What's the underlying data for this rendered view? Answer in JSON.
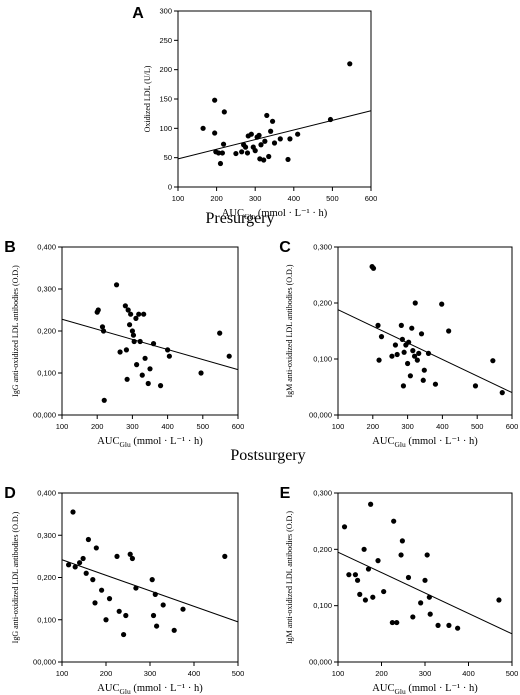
{
  "sections": {
    "presurgery": "Presurgery",
    "postsurgery": "Postsurgery"
  },
  "chart_data": [
    {
      "panel": "A",
      "type": "scatter",
      "xlabel_main": "AUC",
      "xlabel_sub": "Glu",
      "xlabel_tail": " (mmol · L⁻¹ · h)",
      "ylabel": "Oxidized LDL (U/L)",
      "xlim": [
        100,
        600
      ],
      "ylim": [
        0,
        300
      ],
      "xticks": [
        "100",
        "200",
        "300",
        "400",
        "500",
        "600"
      ],
      "yticks": [
        "0",
        "50",
        "100",
        "150",
        "200",
        "250",
        "300"
      ],
      "trend": {
        "x": [
          100,
          600
        ],
        "y": [
          48,
          130
        ]
      },
      "points": [
        {
          "x": 165,
          "y": 100
        },
        {
          "x": 195,
          "y": 148
        },
        {
          "x": 195,
          "y": 92
        },
        {
          "x": 198,
          "y": 60
        },
        {
          "x": 205,
          "y": 58
        },
        {
          "x": 210,
          "y": 40
        },
        {
          "x": 215,
          "y": 58
        },
        {
          "x": 218,
          "y": 73
        },
        {
          "x": 220,
          "y": 128
        },
        {
          "x": 250,
          "y": 57
        },
        {
          "x": 265,
          "y": 60
        },
        {
          "x": 270,
          "y": 72
        },
        {
          "x": 275,
          "y": 68
        },
        {
          "x": 280,
          "y": 58
        },
        {
          "x": 282,
          "y": 87
        },
        {
          "x": 290,
          "y": 90
        },
        {
          "x": 295,
          "y": 68
        },
        {
          "x": 300,
          "y": 62
        },
        {
          "x": 305,
          "y": 85
        },
        {
          "x": 310,
          "y": 88
        },
        {
          "x": 312,
          "y": 48
        },
        {
          "x": 315,
          "y": 72
        },
        {
          "x": 322,
          "y": 46
        },
        {
          "x": 325,
          "y": 78
        },
        {
          "x": 330,
          "y": 122
        },
        {
          "x": 335,
          "y": 52
        },
        {
          "x": 340,
          "y": 95
        },
        {
          "x": 345,
          "y": 112
        },
        {
          "x": 350,
          "y": 75
        },
        {
          "x": 365,
          "y": 82
        },
        {
          "x": 385,
          "y": 47
        },
        {
          "x": 390,
          "y": 82
        },
        {
          "x": 410,
          "y": 90
        },
        {
          "x": 495,
          "y": 115
        },
        {
          "x": 545,
          "y": 210
        }
      ]
    },
    {
      "panel": "B",
      "type": "scatter",
      "xlabel_main": "AUC",
      "xlabel_sub": "Glu",
      "xlabel_tail": " (mmol · L⁻¹ · h)",
      "ylabel": "IgG anti-oxidized LDL antibodies (O.D.)",
      "xlim": [
        100,
        600
      ],
      "ylim": [
        0,
        0.4
      ],
      "xticks": [
        "100",
        "200",
        "300",
        "400",
        "500",
        "600"
      ],
      "yticks": [
        "00,000",
        "0,100",
        "0,200",
        "0,300",
        "0,400"
      ],
      "trend": {
        "x": [
          100,
          600
        ],
        "y": [
          0.228,
          0.108
        ]
      },
      "points": [
        {
          "x": 200,
          "y": 0.245
        },
        {
          "x": 203,
          "y": 0.25
        },
        {
          "x": 215,
          "y": 0.21
        },
        {
          "x": 218,
          "y": 0.2
        },
        {
          "x": 220,
          "y": 0.035
        },
        {
          "x": 255,
          "y": 0.31
        },
        {
          "x": 265,
          "y": 0.15
        },
        {
          "x": 280,
          "y": 0.26
        },
        {
          "x": 283,
          "y": 0.155
        },
        {
          "x": 285,
          "y": 0.085
        },
        {
          "x": 288,
          "y": 0.25
        },
        {
          "x": 292,
          "y": 0.215
        },
        {
          "x": 295,
          "y": 0.24
        },
        {
          "x": 300,
          "y": 0.2
        },
        {
          "x": 303,
          "y": 0.19
        },
        {
          "x": 305,
          "y": 0.175
        },
        {
          "x": 310,
          "y": 0.23
        },
        {
          "x": 312,
          "y": 0.12
        },
        {
          "x": 318,
          "y": 0.24
        },
        {
          "x": 322,
          "y": 0.175
        },
        {
          "x": 328,
          "y": 0.095
        },
        {
          "x": 332,
          "y": 0.24
        },
        {
          "x": 336,
          "y": 0.135
        },
        {
          "x": 345,
          "y": 0.075
        },
        {
          "x": 350,
          "y": 0.11
        },
        {
          "x": 360,
          "y": 0.17
        },
        {
          "x": 380,
          "y": 0.07
        },
        {
          "x": 400,
          "y": 0.155
        },
        {
          "x": 405,
          "y": 0.14
        },
        {
          "x": 495,
          "y": 0.1
        },
        {
          "x": 548,
          "y": 0.195
        },
        {
          "x": 575,
          "y": 0.14
        }
      ]
    },
    {
      "panel": "C",
      "type": "scatter",
      "xlabel_main": "AUC",
      "xlabel_sub": "Glu",
      "xlabel_tail": " (mmol · L⁻¹ · h)",
      "ylabel": "IgM anti-oxidized LDL antibodies (O.D.)",
      "xlim": [
        100,
        600
      ],
      "ylim": [
        0,
        0.3
      ],
      "xticks": [
        "100",
        "200",
        "300",
        "400",
        "500",
        "600"
      ],
      "yticks": [
        "00,000",
        "0,100",
        "0,200",
        "0,300"
      ],
      "trend": {
        "x": [
          100,
          600
        ],
        "y": [
          0.188,
          0.04
        ]
      },
      "points": [
        {
          "x": 198,
          "y": 0.265
        },
        {
          "x": 202,
          "y": 0.262
        },
        {
          "x": 215,
          "y": 0.16
        },
        {
          "x": 218,
          "y": 0.098
        },
        {
          "x": 225,
          "y": 0.14
        },
        {
          "x": 255,
          "y": 0.105
        },
        {
          "x": 265,
          "y": 0.125
        },
        {
          "x": 270,
          "y": 0.108
        },
        {
          "x": 282,
          "y": 0.16
        },
        {
          "x": 285,
          "y": 0.135
        },
        {
          "x": 288,
          "y": 0.052
        },
        {
          "x": 290,
          "y": 0.112
        },
        {
          "x": 295,
          "y": 0.125
        },
        {
          "x": 300,
          "y": 0.092
        },
        {
          "x": 303,
          "y": 0.13
        },
        {
          "x": 308,
          "y": 0.07
        },
        {
          "x": 312,
          "y": 0.155
        },
        {
          "x": 315,
          "y": 0.115
        },
        {
          "x": 320,
          "y": 0.105
        },
        {
          "x": 322,
          "y": 0.2
        },
        {
          "x": 328,
          "y": 0.098
        },
        {
          "x": 332,
          "y": 0.11
        },
        {
          "x": 340,
          "y": 0.145
        },
        {
          "x": 345,
          "y": 0.062
        },
        {
          "x": 348,
          "y": 0.08
        },
        {
          "x": 360,
          "y": 0.11
        },
        {
          "x": 380,
          "y": 0.055
        },
        {
          "x": 398,
          "y": 0.198
        },
        {
          "x": 418,
          "y": 0.15
        },
        {
          "x": 495,
          "y": 0.052
        },
        {
          "x": 545,
          "y": 0.097
        },
        {
          "x": 572,
          "y": 0.04
        }
      ]
    },
    {
      "panel": "D",
      "type": "scatter",
      "xlabel_main": "AUC",
      "xlabel_sub": "Glu",
      "xlabel_tail": " (mmol · L⁻¹ · h)",
      "ylabel": "IgG anti-oxidized LDL antibodies (O.D.)",
      "xlim": [
        100,
        500
      ],
      "ylim": [
        0,
        0.4
      ],
      "xticks": [
        "100",
        "200",
        "300",
        "400",
        "500"
      ],
      "yticks": [
        "00,000",
        "0,100",
        "0,200",
        "0,300",
        "0,400"
      ],
      "trend": {
        "x": [
          100,
          500
        ],
        "y": [
          0.242,
          0.095
        ]
      },
      "points": [
        {
          "x": 115,
          "y": 0.23
        },
        {
          "x": 125,
          "y": 0.355
        },
        {
          "x": 130,
          "y": 0.225
        },
        {
          "x": 140,
          "y": 0.235
        },
        {
          "x": 148,
          "y": 0.245
        },
        {
          "x": 155,
          "y": 0.21
        },
        {
          "x": 160,
          "y": 0.29
        },
        {
          "x": 170,
          "y": 0.195
        },
        {
          "x": 175,
          "y": 0.14
        },
        {
          "x": 178,
          "y": 0.27
        },
        {
          "x": 190,
          "y": 0.17
        },
        {
          "x": 200,
          "y": 0.1
        },
        {
          "x": 208,
          "y": 0.15
        },
        {
          "x": 225,
          "y": 0.25
        },
        {
          "x": 230,
          "y": 0.12
        },
        {
          "x": 240,
          "y": 0.065
        },
        {
          "x": 245,
          "y": 0.11
        },
        {
          "x": 255,
          "y": 0.255
        },
        {
          "x": 260,
          "y": 0.245
        },
        {
          "x": 268,
          "y": 0.175
        },
        {
          "x": 305,
          "y": 0.195
        },
        {
          "x": 308,
          "y": 0.11
        },
        {
          "x": 312,
          "y": 0.16
        },
        {
          "x": 315,
          "y": 0.085
        },
        {
          "x": 330,
          "y": 0.135
        },
        {
          "x": 355,
          "y": 0.075
        },
        {
          "x": 375,
          "y": 0.125
        },
        {
          "x": 470,
          "y": 0.25
        }
      ]
    },
    {
      "panel": "E",
      "type": "scatter",
      "xlabel_main": "AUC",
      "xlabel_sub": "Glu",
      "xlabel_tail": " (mmol · L⁻¹ · h)",
      "ylabel": "IgM anti-oxidized LDL antibodies (O.D.)",
      "xlim": [
        100,
        500
      ],
      "ylim": [
        0,
        0.3
      ],
      "xticks": [
        "100",
        "200",
        "300",
        "400",
        "500"
      ],
      "yticks": [
        "00,000",
        "0,100",
        "0,200",
        "0,300"
      ],
      "trend": {
        "x": [
          100,
          500
        ],
        "y": [
          0.195,
          0.05
        ]
      },
      "points": [
        {
          "x": 115,
          "y": 0.24
        },
        {
          "x": 125,
          "y": 0.155
        },
        {
          "x": 140,
          "y": 0.155
        },
        {
          "x": 145,
          "y": 0.145
        },
        {
          "x": 150,
          "y": 0.12
        },
        {
          "x": 160,
          "y": 0.2
        },
        {
          "x": 163,
          "y": 0.11
        },
        {
          "x": 170,
          "y": 0.165
        },
        {
          "x": 175,
          "y": 0.28
        },
        {
          "x": 180,
          "y": 0.115
        },
        {
          "x": 192,
          "y": 0.18
        },
        {
          "x": 205,
          "y": 0.125
        },
        {
          "x": 225,
          "y": 0.07
        },
        {
          "x": 228,
          "y": 0.25
        },
        {
          "x": 235,
          "y": 0.07
        },
        {
          "x": 245,
          "y": 0.19
        },
        {
          "x": 248,
          "y": 0.215
        },
        {
          "x": 262,
          "y": 0.15
        },
        {
          "x": 272,
          "y": 0.08
        },
        {
          "x": 290,
          "y": 0.105
        },
        {
          "x": 300,
          "y": 0.145
        },
        {
          "x": 305,
          "y": 0.19
        },
        {
          "x": 310,
          "y": 0.115
        },
        {
          "x": 312,
          "y": 0.085
        },
        {
          "x": 330,
          "y": 0.065
        },
        {
          "x": 355,
          "y": 0.065
        },
        {
          "x": 375,
          "y": 0.06
        },
        {
          "x": 470,
          "y": 0.11
        }
      ]
    }
  ]
}
